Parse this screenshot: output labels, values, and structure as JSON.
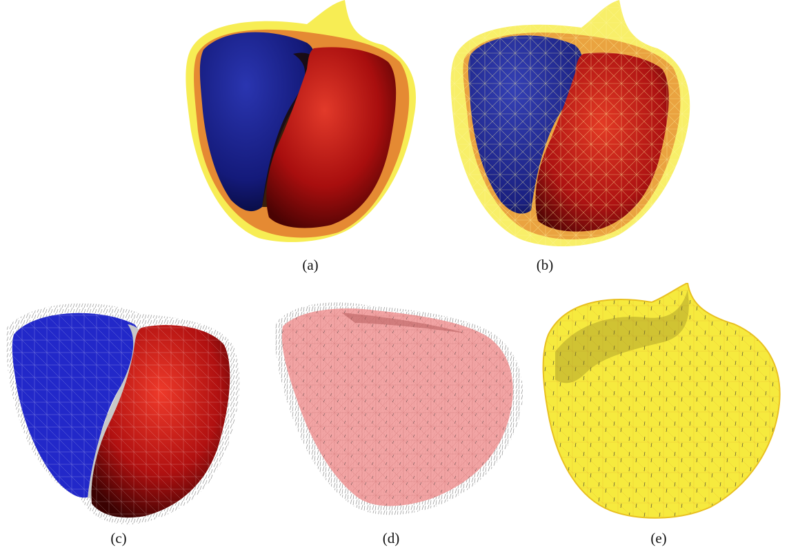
{
  "panels": [
    {
      "id": "a",
      "caption": "(a)"
    },
    {
      "id": "b",
      "caption": "(b)"
    },
    {
      "id": "c",
      "caption": "(c)"
    },
    {
      "id": "d",
      "caption": "(d)"
    },
    {
      "id": "e",
      "caption": "(e)"
    }
  ],
  "colors": {
    "epicardium_yellow": "#f5e829",
    "myocardium_orange": "#e58a33",
    "right_ventricle_blue": "#1b1f8c",
    "left_ventricle_red": "#b01010",
    "panel_d_pink": "#f19a9a",
    "normal_lines_gray": "#9a9a9a"
  }
}
